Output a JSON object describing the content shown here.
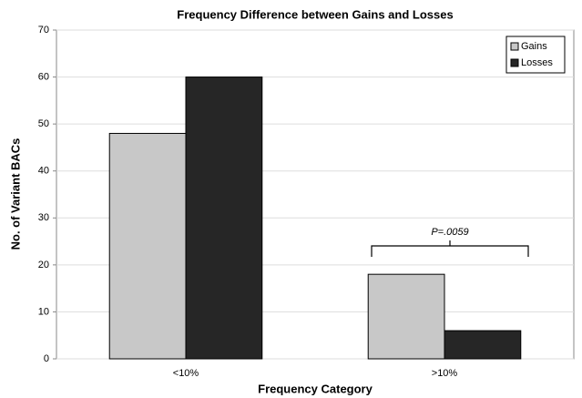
{
  "chart_data": {
    "type": "bar",
    "title": "Frequency Difference between Gains and Losses",
    "x_label": "Frequency Category",
    "y_label": "No. of Variant BACs",
    "categories": [
      "<10%",
      ">10%"
    ],
    "series": [
      {
        "name": "Gains",
        "color": "#c8c8c8",
        "values": [
          48,
          18
        ]
      },
      {
        "name": "Losses",
        "color": "#262626",
        "values": [
          60,
          6
        ]
      }
    ],
    "ylim": [
      0,
      70
    ],
    "yticks": [
      0,
      10,
      20,
      30,
      40,
      50,
      60,
      70
    ],
    "grid": true,
    "legend": "top-right",
    "annotation": "P=.0059"
  }
}
